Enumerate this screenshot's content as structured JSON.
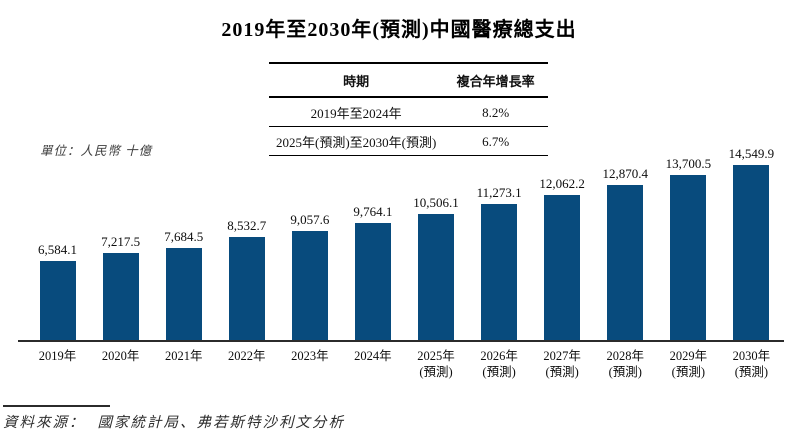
{
  "title": "2019年至2030年(預測)中國醫療總支出",
  "cagr_table": {
    "headers": [
      "時期",
      "複合年增長率"
    ],
    "rows": [
      {
        "period": "2019年至2024年",
        "cagr": "8.2%"
      },
      {
        "period": "2025年(預測)至2030年(預測)",
        "cagr": "6.7%"
      }
    ]
  },
  "unit_label": "單位：人民幣 十億",
  "source": {
    "label": "資料來源：",
    "text": "國家統計局、弗若斯特沙利文分析"
  },
  "chart_data": {
    "type": "bar",
    "title": "2019年至2030年(預測)中國醫療總支出",
    "ylabel": "人民幣 十億",
    "categories": [
      "2019年",
      "2020年",
      "2021年",
      "2022年",
      "2023年",
      "2024年",
      "2025年",
      "2026年",
      "2027年",
      "2028年",
      "2029年",
      "2030年"
    ],
    "forecast_suffix": "(預測)",
    "forecast_start_index": 6,
    "values": [
      6584.1,
      7217.5,
      7684.5,
      8532.7,
      9057.6,
      9764.1,
      10506.1,
      11273.1,
      12062.2,
      12870.4,
      13700.5,
      14549.9
    ],
    "value_labels": [
      "6,584.1",
      "7,217.5",
      "7,684.5",
      "8,532.7",
      "9,057.6",
      "9,764.1",
      "10,506.1",
      "11,273.1",
      "12,062.2",
      "12,870.4",
      "13,700.5",
      "14,549.9"
    ],
    "bar_color": "#084b7d",
    "gridlines": false,
    "legend_position": "none",
    "yaxis_visible": false
  }
}
